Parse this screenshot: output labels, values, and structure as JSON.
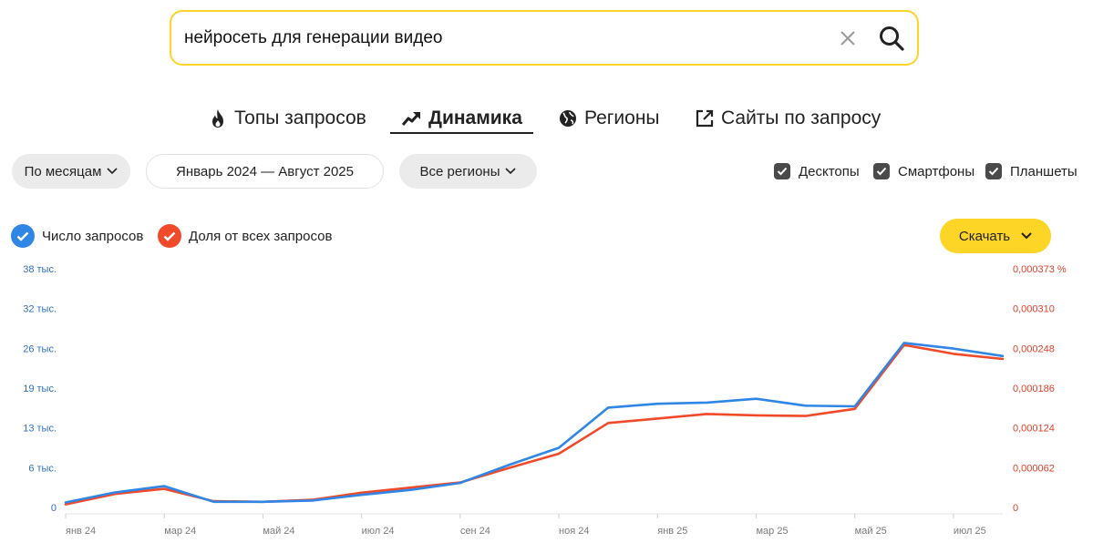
{
  "search": {
    "query": "нейросеть для генерации видео"
  },
  "tabs": [
    {
      "label": "Топы запросов",
      "icon": "fire-icon",
      "active": false
    },
    {
      "label": "Динамика",
      "icon": "trend-up-icon",
      "active": true
    },
    {
      "label": "Регионы",
      "icon": "globe-icon",
      "active": false
    },
    {
      "label": "Сайты по запросу",
      "icon": "external-link-icon",
      "active": false
    }
  ],
  "filters": {
    "period": "По месяцам",
    "date_range": "Январь 2024 — Август 2025",
    "region": "Все регионы"
  },
  "devices": [
    {
      "label": "Десктопы",
      "checked": true
    },
    {
      "label": "Смартфоны",
      "checked": true
    },
    {
      "label": "Планшеты",
      "checked": true
    }
  ],
  "legend": {
    "count_label": "Число запросов",
    "share_label": "Доля от всех запросов"
  },
  "download_label": "Скачать",
  "colors": {
    "accent_yellow": "#fdd526",
    "count_series": "#2f86e5",
    "share_series": "#f04a2a",
    "axis_left": "#2e6fbf",
    "axis_right": "#e0402a"
  },
  "chart_data": {
    "type": "line",
    "x": [
      "янв 24",
      "фев 24",
      "мар 24",
      "апр 24",
      "май 24",
      "июн 24",
      "июл 24",
      "авг 24",
      "сен 24",
      "окт 24",
      "ноя 24",
      "дек 24",
      "янв 25",
      "фев 25",
      "мар 25",
      "апр 25",
      "май 25",
      "июн 25",
      "июл 25",
      "авг 25"
    ],
    "x_tick_labels": [
      "янв 24",
      "мар 24",
      "май 24",
      "июл 24",
      "сен 24",
      "ноя 24",
      "янв 25",
      "мар 25",
      "май 25",
      "июл 25"
    ],
    "y_left_ticks": [
      "0",
      "6 тыс.",
      "13 тыс.",
      "19 тыс.",
      "26 тыс.",
      "32 тыс.",
      "38 тыс."
    ],
    "y_right_ticks": [
      "0",
      "0,000062",
      "0,000124",
      "0,000186",
      "0,000248",
      "0,000310",
      "0,000373 %"
    ],
    "y_left_range": [
      0,
      38000
    ],
    "y_right_range": [
      0,
      0.000373
    ],
    "series": [
      {
        "name": "Число запросов",
        "axis": "left",
        "values": [
          800,
          2400,
          3400,
          900,
          900,
          1100,
          2000,
          2800,
          3900,
          6800,
          9500,
          15900,
          16500,
          16700,
          17300,
          16200,
          16100,
          26200,
          25300,
          24100
        ]
      },
      {
        "name": "Доля от всех запросов",
        "axis": "right",
        "values": [
          4.8e-06,
          2.1e-05,
          2.9e-05,
          9.8e-06,
          8.8e-06,
          1.2e-05,
          2.3e-05,
          3.1e-05,
          3.9e-05,
          6.2e-05,
          8.4e-05,
          0.000132,
          0.000139,
          0.000146,
          0.000144,
          0.000143,
          0.000154,
          0.000254,
          0.00024,
          0.000232
        ]
      }
    ],
    "grid": false,
    "legend_position": "top-left"
  }
}
